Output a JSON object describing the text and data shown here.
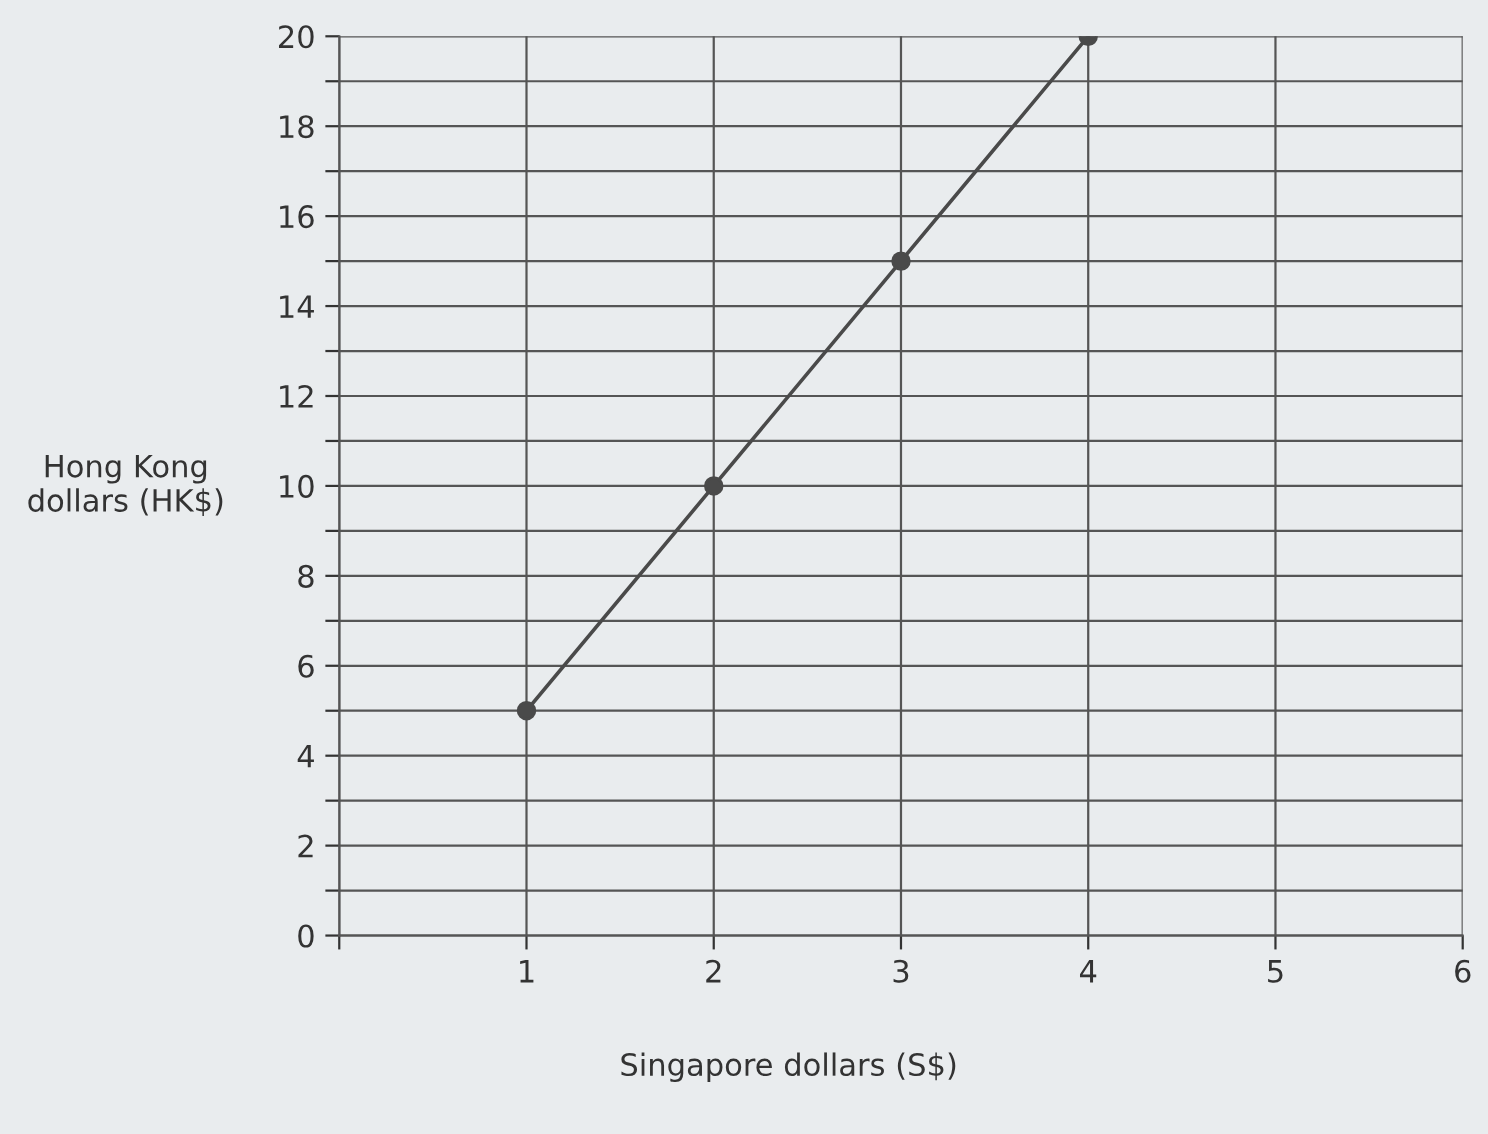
{
  "chart_data": {
    "type": "line",
    "xlabel": "Singapore dollars (S$)",
    "ylabel": "Hong Kong\ndollars (HK$)",
    "x": [
      1,
      2,
      3,
      4
    ],
    "series": [
      {
        "color": "#4a4a4a",
        "values": [
          5,
          10,
          15,
          20
        ]
      }
    ],
    "xlim": [
      0,
      6
    ],
    "xticks": [
      {
        "value": 0,
        "label": null
      },
      1,
      2,
      3,
      4,
      5,
      6
    ],
    "ylim": [
      0,
      20
    ],
    "yticks": [
      0,
      {
        "value": 1,
        "label": null
      },
      2,
      {
        "value": 3,
        "label": null
      },
      4,
      {
        "value": 5,
        "label": null
      },
      6,
      {
        "value": 7,
        "label": null
      },
      8,
      {
        "value": 9,
        "label": null
      },
      10,
      {
        "value": 11,
        "label": null
      },
      12,
      {
        "value": 13,
        "label": null
      },
      14,
      {
        "value": 15,
        "label": null
      },
      16,
      {
        "value": 17,
        "label": null
      },
      18,
      {
        "value": 19,
        "label": null
      },
      20
    ],
    "grid": true,
    "marker": "circle",
    "line_style": "solid"
  }
}
